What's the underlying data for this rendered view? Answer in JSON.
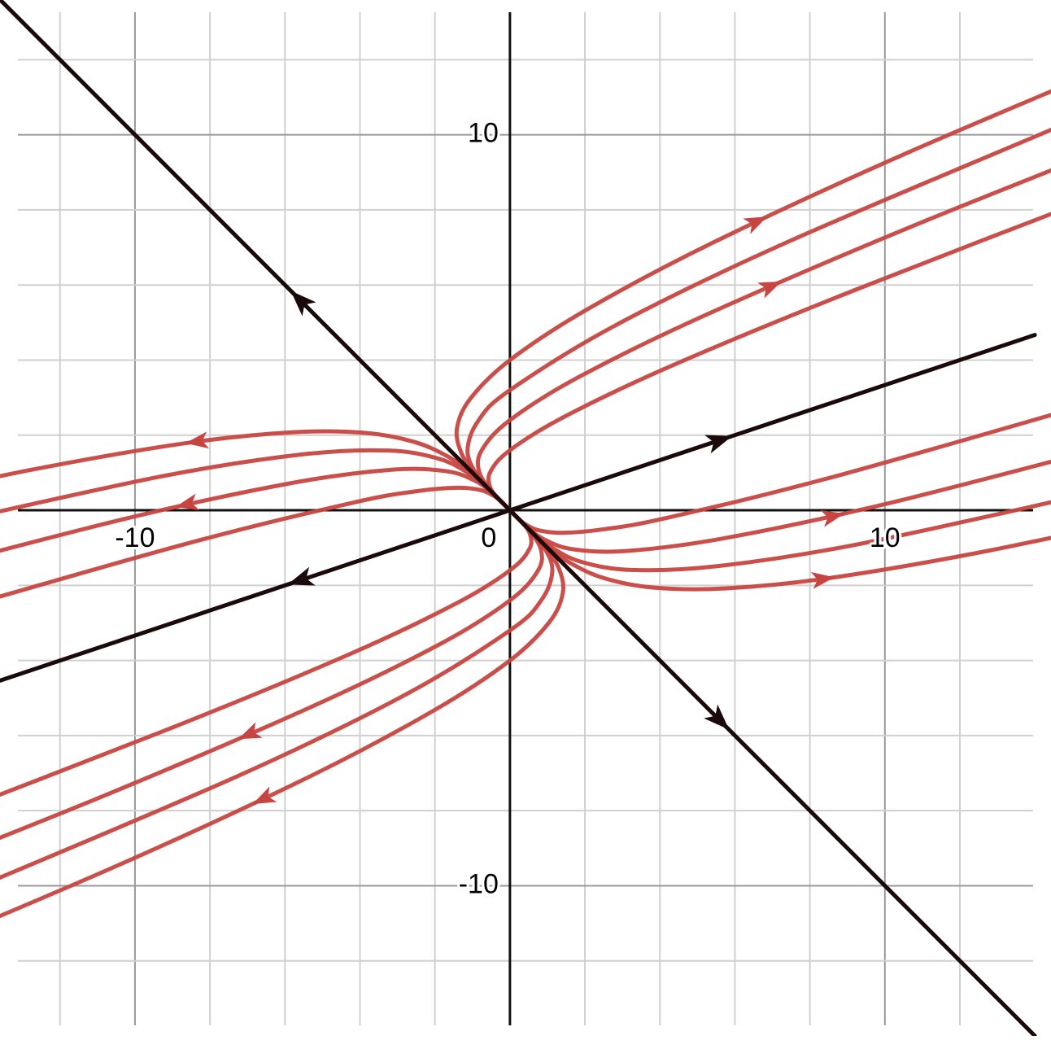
{
  "chart_data": {
    "type": "line",
    "xlim": [
      -13.6,
      14.43
    ],
    "ylim": [
      -14,
      13.59
    ],
    "xticks": [
      -10,
      0,
      10
    ],
    "yticks": [
      -10,
      10
    ],
    "xgrid": [
      -12,
      -10,
      -8,
      -6,
      -4,
      -2,
      2,
      4,
      6,
      8,
      10,
      12
    ],
    "ygrid": [
      -12,
      -10,
      -8,
      -6,
      -4,
      -2,
      2,
      4,
      6,
      8,
      10,
      12
    ],
    "grid": true,
    "series": [
      {
        "color": "#c74440",
        "x": [
          0,
          -0.5,
          -0.96,
          -1.31,
          -1.41,
          -1.05,
          0,
          2.06,
          5.48,
          10.69,
          18.15
        ],
        "values": [
          0,
          0.5,
          1.01,
          1.56,
          2.2,
          2.98,
          4,
          5.35,
          7.16,
          9.56,
          12.72
        ]
      },
      {
        "color": "#c74440",
        "x": [
          0,
          -0.5,
          -0.93,
          -1.13,
          -0.84,
          0,
          2.86,
          7.35,
          14.52
        ],
        "values": [
          0,
          0.5,
          1.02,
          1.62,
          2.39,
          3.2,
          4.95,
          7.12,
          10.17
        ]
      },
      {
        "color": "#c74440",
        "x": [
          0,
          -0.49,
          -0.83,
          -0.74,
          0,
          1.82,
          5.24,
          10.89,
          17.04
        ],
        "values": [
          0,
          0.5,
          1.06,
          1.62,
          2.4,
          3.54,
          5.21,
          7.63,
          10.08
        ]
      },
      {
        "color": "#c74440",
        "x": [
          0,
          -0.3,
          -0.53,
          -0.52,
          0,
          1.43,
          4.27,
          9.16,
          16.8
        ],
        "values": [
          0,
          0.3,
          0.62,
          1.03,
          1.6,
          2.48,
          3.83,
          5.85,
          8.8
        ]
      },
      {
        "color": "#c74440",
        "x": [
          0,
          0.5,
          0.96,
          1.31,
          1.41,
          1.05,
          0,
          -2.06,
          -5.48,
          -10.69,
          -18.15
        ],
        "values": [
          0,
          -0.5,
          -1.01,
          -1.56,
          -2.2,
          -2.98,
          -4,
          -5.35,
          -7.16,
          -9.56,
          -12.72
        ]
      },
      {
        "color": "#c74440",
        "x": [
          0,
          0.5,
          0.93,
          1.13,
          0.84,
          0,
          -2.86,
          -7.35,
          -14.52
        ],
        "values": [
          0,
          -0.5,
          -1.02,
          -1.62,
          -2.39,
          -3.2,
          -4.95,
          -7.12,
          -10.17
        ]
      },
      {
        "color": "#c74440",
        "x": [
          0,
          0.49,
          0.83,
          0.74,
          0,
          -1.82,
          -5.24,
          -10.89,
          -17.04
        ],
        "values": [
          0,
          -0.5,
          -1.06,
          -1.62,
          -2.4,
          -3.54,
          -5.21,
          -7.63,
          -10.08
        ]
      },
      {
        "color": "#c74440",
        "x": [
          0,
          0.3,
          0.53,
          0.52,
          0,
          -1.43,
          -4.27,
          -9.16,
          -16.8
        ],
        "values": [
          0,
          -0.3,
          -0.62,
          -1.03,
          -1.6,
          -2.48,
          -3.83,
          -5.85,
          -8.8
        ]
      },
      {
        "color": "#c74440",
        "x": [
          0,
          0.5,
          1.03,
          1.67,
          2.55,
          3.84,
          5.77,
          8.63,
          12.75,
          17.21
        ],
        "values": [
          0,
          -0.5,
          -0.99,
          -1.44,
          -1.82,
          -2.06,
          -2.08,
          -1.79,
          -1.08,
          -0.13
        ]
      },
      {
        "color": "#c74440",
        "x": [
          0,
          0.5,
          1.08,
          1.89,
          3.24,
          5.52,
          9.26,
          15.09
        ],
        "values": [
          0,
          -0.5,
          -0.97,
          -1.37,
          -1.59,
          -1.49,
          -0.91,
          0.36
        ]
      },
      {
        "color": "#c74440",
        "x": [
          0,
          0.41,
          0.9,
          1.69,
          3.16,
          5.8,
          10.28,
          17.4
        ],
        "values": [
          0,
          -0.4,
          -0.77,
          -1.04,
          -1.08,
          -0.73,
          0.23,
          2.07
        ]
      },
      {
        "color": "#c74440",
        "x": [
          0,
          0.2,
          0.44,
          0.79,
          1.4,
          2.47,
          4.24,
          8.92,
          17.18
        ],
        "values": [
          0,
          -0.2,
          -0.39,
          -0.54,
          -0.6,
          -0.51,
          -0.19,
          0.97,
          3.33
        ]
      },
      {
        "color": "#c74440",
        "x": [
          0,
          -0.5,
          -1.03,
          -1.67,
          -2.55,
          -3.84,
          -5.77,
          -8.63,
          -12.75,
          -17.21
        ],
        "values": [
          0,
          0.5,
          0.99,
          1.44,
          1.82,
          2.06,
          2.08,
          1.79,
          1.08,
          0.13
        ]
      },
      {
        "color": "#c74440",
        "x": [
          0,
          -0.5,
          -1.08,
          -1.89,
          -3.24,
          -5.52,
          -9.26,
          -15.09
        ],
        "values": [
          0,
          0.5,
          0.97,
          1.37,
          1.59,
          1.49,
          0.91,
          -0.36
        ]
      },
      {
        "color": "#c74440",
        "x": [
          0,
          -0.41,
          -0.9,
          -1.69,
          -3.16,
          -5.8,
          -10.28,
          -17.4
        ],
        "values": [
          0,
          0.4,
          0.77,
          1.04,
          1.08,
          0.73,
          -0.23,
          -2.07
        ]
      },
      {
        "color": "#c74440",
        "x": [
          0,
          -0.2,
          -0.44,
          -0.79,
          -1.4,
          -2.47,
          -4.24,
          -8.92,
          -17.18
        ],
        "values": [
          0,
          0.2,
          0.39,
          0.54,
          0.6,
          0.51,
          0.19,
          -0.97,
          -3.33
        ]
      },
      {
        "color": "#1a0a0a",
        "x": [
          0,
          -14
        ],
        "values": [
          0,
          14
        ]
      },
      {
        "color": "#1a0a0a",
        "x": [
          0,
          14
        ],
        "values": [
          0,
          -14
        ]
      },
      {
        "color": "#1a0a0a",
        "x": [
          0,
          14
        ],
        "values": [
          0,
          4.67
        ]
      },
      {
        "color": "#1a0a0a",
        "x": [
          0,
          -14
        ],
        "values": [
          0,
          -4.67
        ]
      }
    ]
  }
}
